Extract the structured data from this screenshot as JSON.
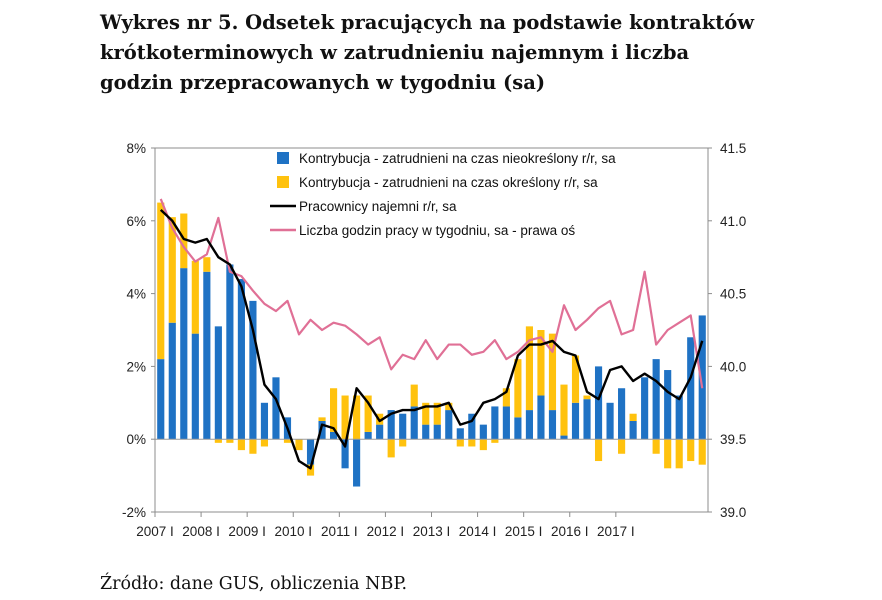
{
  "page": {
    "title": "Wykres nr  5. Odsetek pracujących na podstawie kontraktów krótkoterminowych w zatrudnieniu najemnym i liczba godzin przepracowanych w tygodniu (sa)",
    "source": "Źródło: dane GUS, obliczenia NBP."
  },
  "chart_data": {
    "type": "bar",
    "stacked": true,
    "x_tick_labels": [
      "2007 I",
      "2008 I",
      "2009 I",
      "2010 I",
      "2011 I",
      "2012 I",
      "2013 I",
      "2014 I",
      "2015 I",
      "2016 I",
      "2017 I"
    ],
    "y_left_ticks": [
      "8%",
      "6%",
      "4%",
      "2%",
      "0%",
      "-2%"
    ],
    "y_right_ticks": [
      "41.5",
      "41.0",
      "40.5",
      "40.0",
      "39.5",
      "39.0"
    ],
    "ylim_left": [
      -2,
      8
    ],
    "ylim_right": [
      39.0,
      41.5
    ],
    "grid": false,
    "legend_position": "top-right",
    "colors": {
      "indefinite": "#1f72c4",
      "fixed": "#ffc20e",
      "employees": "#000000",
      "hours": "#e07096"
    },
    "series": [
      {
        "name": "Kontrybucja - zatrudnieni na czas nieokreślony r/r, sa",
        "kind": "bar",
        "axis": "left",
        "values": [
          2.2,
          3.2,
          4.7,
          2.9,
          4.6,
          3.1,
          4.8,
          4.4,
          3.8,
          1.0,
          1.7,
          0.6,
          0.0,
          -0.7,
          0.5,
          0.2,
          -0.8,
          -1.3,
          0.2,
          0.4,
          0.8,
          0.7,
          0.9,
          0.4,
          0.4,
          0.8,
          0.3,
          0.7,
          0.4,
          0.9,
          0.9,
          0.6,
          0.8,
          1.2,
          0.8,
          0.1,
          1.0,
          1.1,
          2.0,
          1.0,
          1.4,
          0.5,
          1.7,
          2.2,
          1.9,
          1.2,
          2.8,
          3.4
        ]
      },
      {
        "name": "Kontrybucja - zatrudnieni na czas określony r/r, sa",
        "kind": "bar",
        "axis": "left",
        "values": [
          4.3,
          2.9,
          1.5,
          2.0,
          0.4,
          -0.1,
          -0.1,
          -0.3,
          -0.4,
          -0.2,
          0.0,
          -0.1,
          -0.3,
          -0.3,
          0.1,
          1.2,
          1.2,
          1.2,
          1.0,
          0.3,
          -0.5,
          -0.2,
          0.6,
          0.6,
          0.6,
          0.2,
          -0.2,
          -0.2,
          -0.3,
          -0.1,
          0.5,
          1.6,
          2.3,
          1.8,
          2.1,
          1.4,
          1.3,
          0.1,
          -0.6,
          0.0,
          -0.4,
          0.2,
          0.0,
          -0.4,
          -0.8,
          -0.8,
          -0.6,
          -0.7
        ]
      },
      {
        "name": "Pracownicy najemni r/r, sa",
        "kind": "line",
        "axis": "left",
        "values": [
          6.3,
          6.0,
          5.5,
          5.4,
          5.5,
          5.0,
          4.8,
          4.2,
          3.0,
          1.5,
          1.1,
          0.3,
          -0.6,
          -0.8,
          0.4,
          0.3,
          -0.2,
          1.4,
          1.0,
          0.5,
          0.7,
          0.8,
          0.8,
          0.9,
          0.9,
          1.0,
          0.4,
          0.5,
          1.0,
          1.1,
          1.3,
          2.3,
          2.6,
          2.6,
          2.7,
          2.4,
          2.3,
          1.3,
          1.1,
          1.9,
          2.0,
          1.6,
          1.8,
          1.6,
          1.3,
          1.1,
          1.7,
          2.7
        ]
      },
      {
        "name": "Liczba godzin pracy w tygodniu, sa - prawa oś",
        "kind": "line",
        "axis": "right",
        "values": [
          41.15,
          40.95,
          40.82,
          40.72,
          40.77,
          41.02,
          40.65,
          40.62,
          40.52,
          40.43,
          40.38,
          40.45,
          40.22,
          40.32,
          40.25,
          40.3,
          40.28,
          40.22,
          40.15,
          40.2,
          39.98,
          40.08,
          40.05,
          40.18,
          40.05,
          40.15,
          40.15,
          40.08,
          40.1,
          40.18,
          40.05,
          40.1,
          40.18,
          40.2,
          40.1,
          40.42,
          40.25,
          40.32,
          40.4,
          40.45,
          40.22,
          40.25,
          40.65,
          40.15,
          40.25,
          40.3,
          40.35,
          39.85
        ]
      }
    ]
  }
}
